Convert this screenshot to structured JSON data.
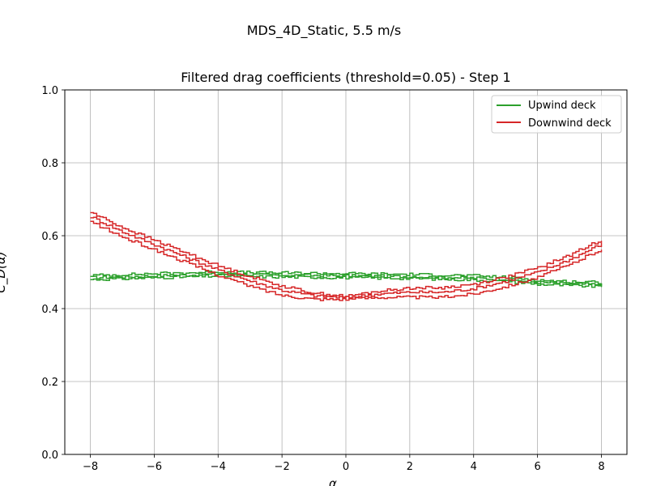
{
  "figure": {
    "suptitle": "MDS_4D_Static, 5.5 m/s"
  },
  "chart_data": {
    "type": "line",
    "title": "Filtered drag coefficients (threshold=0.05) - Step 1",
    "xlabel": "α",
    "ylabel": "C_D(α)",
    "xlim": [
      -8.8,
      8.8
    ],
    "ylim": [
      0.0,
      1.0
    ],
    "xticks": [
      "−8",
      "−6",
      "−4",
      "−2",
      "0",
      "2",
      "4",
      "6",
      "8"
    ],
    "yticks": [
      "0.0",
      "0.2",
      "0.4",
      "0.6",
      "0.8",
      "1.0"
    ],
    "grid": true,
    "legend_position": "top-right",
    "series": [
      {
        "name": "Upwind deck",
        "color": "#2ca02c",
        "x": [
          -8,
          -7,
          -6,
          -5,
          -4,
          -3,
          -2,
          -1,
          0,
          1,
          2,
          3,
          4,
          5,
          6,
          7,
          8
        ],
        "y": [
          0.485,
          0.487,
          0.49,
          0.492,
          0.495,
          0.493,
          0.492,
          0.491,
          0.49,
          0.489,
          0.488,
          0.486,
          0.484,
          0.48,
          0.472,
          0.468,
          0.466
        ]
      },
      {
        "name": "Downwind deck",
        "color": "#d62728",
        "x": [
          -8,
          -7,
          -6,
          -5,
          -4,
          -3,
          -2,
          -1,
          0,
          1,
          2,
          3,
          4,
          5,
          6,
          7,
          8
        ],
        "y": [
          0.652,
          0.61,
          0.575,
          0.54,
          0.505,
          0.475,
          0.45,
          0.435,
          0.43,
          0.44,
          0.445,
          0.445,
          0.455,
          0.475,
          0.5,
          0.535,
          0.578
        ]
      }
    ]
  }
}
